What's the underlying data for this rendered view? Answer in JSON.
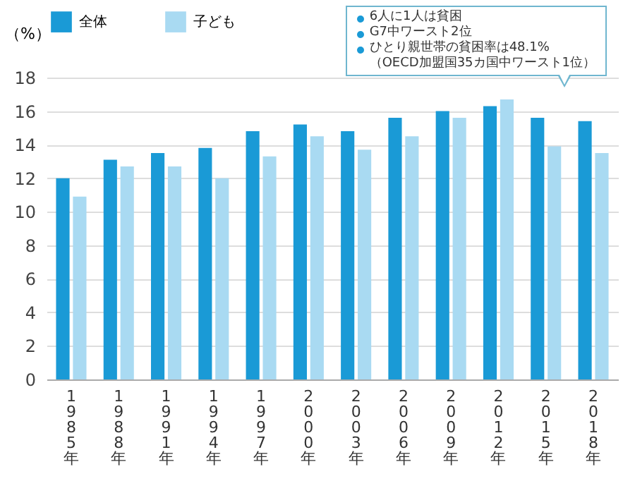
{
  "chart_data": {
    "type": "bar",
    "ylabel": "（%）",
    "categories": [
      "1985年",
      "1988年",
      "1991年",
      "1994年",
      "1997年",
      "2000年",
      "2003年",
      "2006年",
      "2009年",
      "2012年",
      "2015年",
      "2018年"
    ],
    "series": [
      {
        "name": "全体",
        "color": "#1a9ad6",
        "values": [
          12.0,
          13.1,
          13.5,
          13.8,
          14.8,
          15.2,
          14.8,
          15.6,
          16.0,
          16.3,
          15.6,
          15.4
        ]
      },
      {
        "name": "子ども",
        "color": "#a9daf2",
        "values": [
          10.9,
          12.7,
          12.7,
          12.0,
          13.3,
          14.5,
          13.7,
          14.5,
          15.6,
          16.7,
          13.9,
          13.5
        ]
      }
    ],
    "ylim": [
      0,
      18
    ],
    "yticks": [
      0,
      2,
      4,
      6,
      8,
      10,
      12,
      14,
      16,
      18
    ],
    "grid": "y",
    "legend": "top left",
    "annotations": [
      "6人に1人は貧困",
      "G7中ワースト2位",
      "ひとり親世帯の貧困率は48.1%\n（OECD加盟国35カ国中ワースト1位）"
    ]
  }
}
